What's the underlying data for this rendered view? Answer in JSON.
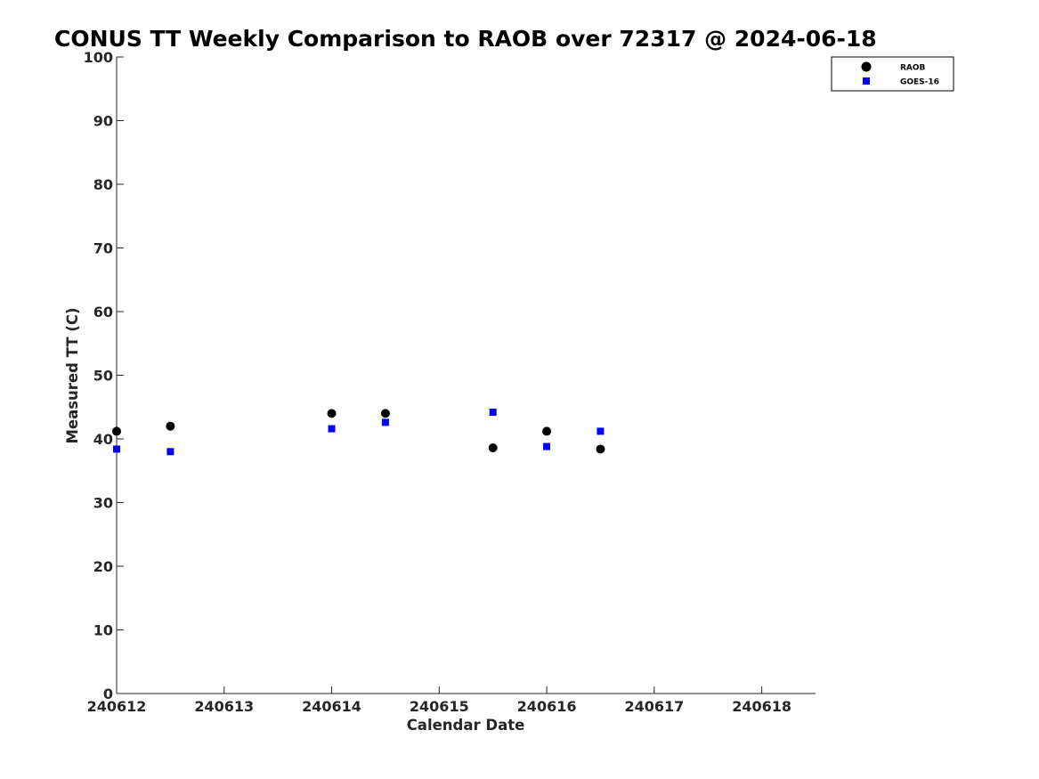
{
  "chart_data": {
    "type": "scatter",
    "title": "CONUS TT Weekly Comparison to RAOB over 72317 @ 2024-06-18",
    "xlabel": "Calendar Date",
    "ylabel": "Measured TT (C)",
    "xlim": [
      240612,
      240618.5
    ],
    "ylim": [
      0,
      100
    ],
    "xticks": [
      240612,
      240613,
      240614,
      240615,
      240616,
      240617,
      240618
    ],
    "xtick_labels": [
      "240612",
      "240613",
      "240614",
      "240615",
      "240616",
      "240617",
      "240618"
    ],
    "yticks": [
      0,
      10,
      20,
      30,
      40,
      50,
      60,
      70,
      80,
      90,
      100
    ],
    "ytick_labels": [
      "0",
      "10",
      "20",
      "30",
      "40",
      "50",
      "60",
      "70",
      "80",
      "90",
      "100"
    ],
    "grid": false,
    "legend_position": "top-right",
    "series": [
      {
        "name": "RAOB",
        "marker": "circle",
        "color": "#000000",
        "x": [
          240612,
          240612.5,
          240614,
          240614.5,
          240615.5,
          240616,
          240616.5
        ],
        "y": [
          41.2,
          42.0,
          44.0,
          44.0,
          38.6,
          41.2,
          38.4
        ]
      },
      {
        "name": "GOES-16",
        "marker": "square",
        "color": "#0000ff",
        "x": [
          240612,
          240612.5,
          240614,
          240614.5,
          240615.5,
          240616,
          240616.5
        ],
        "y": [
          38.4,
          38.0,
          41.6,
          42.6,
          44.2,
          38.8,
          41.2
        ]
      }
    ]
  }
}
